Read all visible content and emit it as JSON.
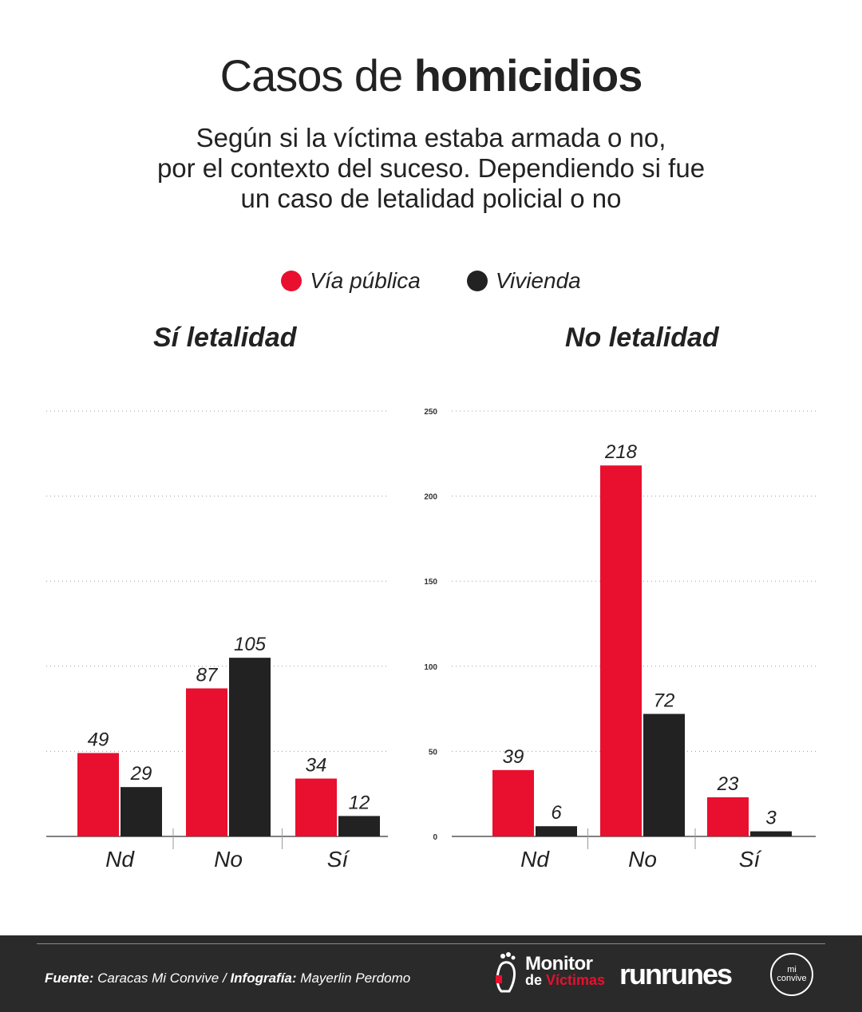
{
  "header": {
    "title_light": "Casos de",
    "title_bold": "homicidios",
    "subtitle_lines": [
      "Según si la víctima estaba armada o no,",
      "por el contexto del suceso. Dependiendo si fue",
      "un caso de letalidad policial o no"
    ]
  },
  "legend": [
    {
      "label": "Vía pública",
      "color": "#e8102e"
    },
    {
      "label": "Vivienda",
      "color": "#222222"
    }
  ],
  "colors": {
    "via_publica": "#e8102e",
    "vivienda": "#222222",
    "grid": "#9a9a9a",
    "axis": "#555555"
  },
  "chart_data": [
    {
      "type": "bar",
      "title": "Sí letalidad",
      "categories": [
        "Nd",
        "No",
        "Sí"
      ],
      "series": [
        {
          "name": "Vía pública",
          "values": [
            49,
            87,
            34
          ]
        },
        {
          "name": "Vivienda",
          "values": [
            29,
            105,
            12
          ]
        }
      ],
      "ylim": [
        0,
        250
      ],
      "yticks": [],
      "grid": true
    },
    {
      "type": "bar",
      "title": "No letalidad",
      "categories": [
        "Nd",
        "No",
        "Sí"
      ],
      "series": [
        {
          "name": "Vía pública",
          "values": [
            39,
            218,
            23
          ]
        },
        {
          "name": "Vivienda",
          "values": [
            6,
            72,
            3
          ]
        }
      ],
      "ylim": [
        0,
        250
      ],
      "yticks": [
        "0",
        "50",
        "100",
        "150",
        "200",
        "250"
      ],
      "grid": true
    }
  ],
  "footer": {
    "source_label": "Fuente:",
    "source_text": "Caracas Mi Convive",
    "sep": "/",
    "credit_label": "Infografía:",
    "credit_text": "Mayerlin Perdomo",
    "logo_monitor_line1": "Monitor",
    "logo_monitor_line2a": "de",
    "logo_monitor_line2b": "Víctimas",
    "logo_runrun": "runrunes",
    "logo_mi_line1": "mi",
    "logo_mi_line2": "convive"
  }
}
